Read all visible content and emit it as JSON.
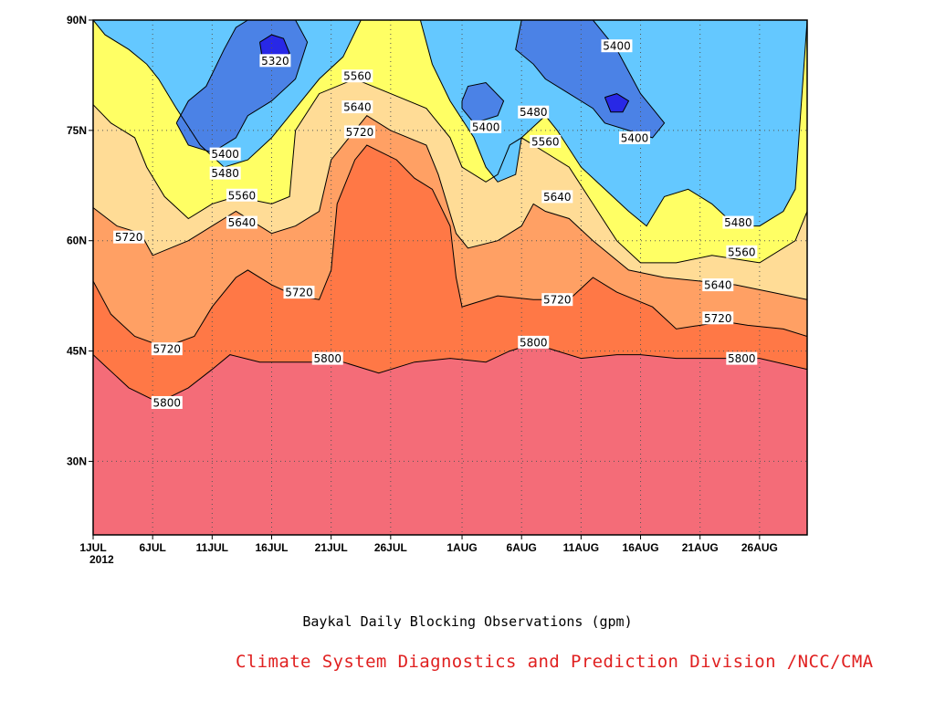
{
  "chart_data": {
    "type": "heatmap",
    "title": "Baykal Daily Blocking Observations (gpm)",
    "credit": "Climate System Diagnostics and Prediction Division /NCC/CMA",
    "xlabel": "",
    "ylabel": "",
    "x_range": [
      "2012-07-01",
      "2012-08-30"
    ],
    "y_range": [
      20,
      90
    ],
    "x_ticks": [
      {
        "day": 0,
        "label": "1JUL"
      },
      {
        "day": 5,
        "label": "6JUL"
      },
      {
        "day": 10,
        "label": "11JUL"
      },
      {
        "day": 15,
        "label": "16JUL"
      },
      {
        "day": 20,
        "label": "21JUL"
      },
      {
        "day": 25,
        "label": "26JUL"
      },
      {
        "day": 31,
        "label": "1AUG"
      },
      {
        "day": 36,
        "label": "6AUG"
      },
      {
        "day": 41,
        "label": "11AUG"
      },
      {
        "day": 46,
        "label": "16AUG"
      },
      {
        "day": 51,
        "label": "21AUG"
      },
      {
        "day": 56,
        "label": "26AUG"
      }
    ],
    "year_label": "2012",
    "y_ticks": [
      {
        "lat": 30,
        "label": "30N"
      },
      {
        "lat": 45,
        "label": "45N"
      },
      {
        "lat": 60,
        "label": "60N"
      },
      {
        "lat": 75,
        "label": "75N"
      },
      {
        "lat": 90,
        "label": "90N"
      }
    ],
    "grid": true,
    "levels": [
      5320,
      5400,
      5480,
      5560,
      5640,
      5720,
      5800
    ],
    "fill_colors": {
      "5320": "#2828e6",
      "5400": "#4b82e6",
      "5480": "#64c8ff",
      "5560": "#ffff64",
      "5640": "#ffdc96",
      "5720": "#ffa064",
      "5800": "#ff7846",
      "above": "#f46c78"
    },
    "contours": [
      {
        "level": 5800,
        "points": [
          [
            0,
            44.5
          ],
          [
            1,
            43
          ],
          [
            3,
            40
          ],
          [
            5.5,
            38
          ],
          [
            8,
            40
          ],
          [
            10,
            42.5
          ],
          [
            11.5,
            44.5
          ],
          [
            14,
            43.5
          ],
          [
            18,
            43.5
          ],
          [
            21,
            43.5
          ],
          [
            24,
            42
          ],
          [
            27,
            43.5
          ],
          [
            30,
            44
          ],
          [
            33,
            43.5
          ],
          [
            35,
            45
          ],
          [
            37,
            46
          ],
          [
            39,
            45
          ],
          [
            41,
            44
          ],
          [
            44,
            44.5
          ],
          [
            46,
            44.5
          ],
          [
            49,
            44
          ],
          [
            53,
            44
          ],
          [
            56,
            44
          ],
          [
            60,
            42.5
          ]
        ]
      },
      {
        "level": 5720,
        "points": [
          [
            0,
            54.5
          ],
          [
            1.5,
            50
          ],
          [
            3.5,
            47
          ],
          [
            6,
            45.5
          ],
          [
            8.5,
            47
          ],
          [
            10,
            51
          ],
          [
            12,
            55
          ],
          [
            13,
            56
          ],
          [
            15,
            54
          ],
          [
            17,
            52.5
          ],
          [
            19,
            52
          ],
          [
            20,
            56
          ],
          [
            20.5,
            65
          ],
          [
            22,
            71
          ],
          [
            23,
            73
          ],
          [
            25.5,
            71
          ],
          [
            27,
            68.5
          ],
          [
            28.5,
            67
          ],
          [
            30,
            62
          ],
          [
            30.5,
            55
          ],
          [
            31,
            51
          ],
          [
            34,
            52.5
          ],
          [
            37,
            52
          ],
          [
            40,
            52
          ],
          [
            42,
            55
          ],
          [
            44,
            53
          ],
          [
            47,
            51
          ],
          [
            49,
            48
          ],
          [
            53,
            49
          ],
          [
            55,
            48.5
          ],
          [
            58,
            48
          ],
          [
            60,
            47
          ]
        ]
      },
      {
        "level": 5640,
        "points": [
          [
            0,
            64.5
          ],
          [
            2,
            62
          ],
          [
            4,
            61
          ],
          [
            5,
            58
          ],
          [
            8,
            60
          ],
          [
            10,
            62
          ],
          [
            12,
            64
          ],
          [
            15,
            61
          ],
          [
            17,
            62
          ],
          [
            19,
            64
          ],
          [
            20,
            71
          ],
          [
            23,
            77
          ],
          [
            25,
            75
          ],
          [
            28,
            73
          ],
          [
            29,
            69
          ],
          [
            30.5,
            61
          ],
          [
            31.5,
            59
          ],
          [
            34,
            60
          ],
          [
            36,
            62
          ],
          [
            37,
            65
          ],
          [
            38,
            64
          ],
          [
            40,
            63
          ],
          [
            42,
            60
          ],
          [
            45,
            56
          ],
          [
            48,
            55
          ],
          [
            51,
            54.5
          ],
          [
            54,
            54
          ],
          [
            57,
            53
          ],
          [
            60,
            52
          ]
        ]
      },
      {
        "level": 5560,
        "points": [
          [
            0,
            78.5
          ],
          [
            1.5,
            76
          ],
          [
            3.5,
            74
          ],
          [
            4.5,
            70
          ],
          [
            6,
            66
          ],
          [
            8,
            63
          ],
          [
            10,
            65
          ],
          [
            12,
            66
          ],
          [
            15,
            65
          ],
          [
            16.5,
            66
          ],
          [
            17,
            75
          ],
          [
            19,
            80
          ],
          [
            22,
            82
          ],
          [
            25,
            80
          ],
          [
            28,
            78
          ],
          [
            30,
            74
          ],
          [
            31,
            70
          ],
          [
            33,
            68
          ],
          [
            34,
            69
          ],
          [
            35,
            73
          ],
          [
            36,
            74
          ],
          [
            38,
            72
          ],
          [
            40,
            70
          ],
          [
            42,
            65
          ],
          [
            44,
            60
          ],
          [
            46,
            57
          ],
          [
            49,
            57
          ],
          [
            52,
            58
          ],
          [
            56,
            57
          ],
          [
            59,
            60
          ],
          [
            60,
            64
          ]
        ]
      },
      {
        "level": 5480,
        "points": [
          [
            0,
            90
          ],
          [
            1,
            88
          ],
          [
            3,
            86
          ],
          [
            4.5,
            84
          ],
          [
            5.5,
            82
          ],
          [
            7,
            78
          ],
          [
            9,
            73
          ],
          [
            11,
            70
          ],
          [
            13,
            71
          ],
          [
            15,
            74
          ],
          [
            17,
            78
          ],
          [
            19,
            82
          ],
          [
            21,
            85
          ],
          [
            22.5,
            90
          ]
        ]
      },
      {
        "level": 5480,
        "points": [
          [
            27.5,
            90
          ],
          [
            28.5,
            84
          ],
          [
            30,
            79
          ],
          [
            32,
            74
          ],
          [
            33,
            70
          ],
          [
            34,
            68
          ],
          [
            35.5,
            69
          ],
          [
            36,
            74
          ],
          [
            38,
            77
          ],
          [
            39,
            75
          ],
          [
            41,
            70
          ],
          [
            43,
            67
          ],
          [
            45,
            64
          ],
          [
            46.5,
            62
          ],
          [
            48,
            66
          ],
          [
            50,
            67
          ],
          [
            52,
            65
          ],
          [
            54,
            62
          ],
          [
            56,
            62
          ],
          [
            58,
            64
          ],
          [
            59,
            67
          ],
          [
            60,
            90
          ]
        ]
      },
      {
        "level": 5400,
        "points": [
          [
            7,
            76
          ],
          [
            8,
            79
          ],
          [
            9.5,
            81
          ],
          [
            11,
            86
          ],
          [
            12,
            89
          ],
          [
            13,
            90
          ],
          [
            17,
            90
          ],
          [
            18,
            87
          ],
          [
            17,
            82
          ],
          [
            15,
            79
          ],
          [
            13,
            77
          ],
          [
            12,
            74
          ],
          [
            10,
            72
          ],
          [
            8,
            73
          ],
          [
            7,
            76
          ]
        ]
      },
      {
        "level": 5400,
        "points": [
          [
            36,
            90
          ],
          [
            35.5,
            86
          ],
          [
            37,
            84
          ],
          [
            38,
            82
          ],
          [
            40,
            80
          ],
          [
            42,
            78
          ],
          [
            43,
            76
          ],
          [
            45,
            75
          ],
          [
            47,
            74
          ],
          [
            48,
            76
          ],
          [
            47,
            78
          ],
          [
            46,
            80
          ],
          [
            45,
            83
          ],
          [
            44,
            86
          ],
          [
            43,
            88
          ],
          [
            42,
            90
          ]
        ]
      },
      {
        "level": 5400,
        "points": [
          [
            31,
            79
          ],
          [
            31.5,
            81
          ],
          [
            33,
            81.5
          ],
          [
            34.5,
            79
          ],
          [
            34,
            77
          ],
          [
            32,
            76
          ],
          [
            31,
            78
          ],
          [
            31,
            79
          ]
        ]
      },
      {
        "level": 5320,
        "points": [
          [
            14,
            87
          ],
          [
            15,
            88
          ],
          [
            16,
            87.5
          ],
          [
            16.5,
            85.5
          ],
          [
            15.5,
            84
          ],
          [
            14.2,
            85
          ],
          [
            14,
            87
          ]
        ]
      },
      {
        "level": 5320,
        "points": [
          [
            43,
            79.5
          ],
          [
            44,
            80
          ],
          [
            45,
            79
          ],
          [
            44.5,
            77.5
          ],
          [
            43.5,
            77.5
          ],
          [
            43,
            79.5
          ]
        ]
      }
    ],
    "contour_labels": [
      {
        "text": "5320",
        "day": 15.3,
        "lat": 84.5
      },
      {
        "text": "5400",
        "day": 11.1,
        "lat": 71.8
      },
      {
        "text": "5480",
        "day": 11.1,
        "lat": 69.2
      },
      {
        "text": "5560",
        "day": 12.5,
        "lat": 66.2
      },
      {
        "text": "5640",
        "day": 12.5,
        "lat": 62.5
      },
      {
        "text": "5720",
        "day": 3.0,
        "lat": 60.5
      },
      {
        "text": "5720",
        "day": 17.3,
        "lat": 53.0
      },
      {
        "text": "5720",
        "day": 6.2,
        "lat": 45.3
      },
      {
        "text": "5800",
        "day": 6.2,
        "lat": 38.0
      },
      {
        "text": "5800",
        "day": 19.7,
        "lat": 44.0
      },
      {
        "text": "5560",
        "day": 22.2,
        "lat": 82.4
      },
      {
        "text": "5640",
        "day": 22.2,
        "lat": 78.2
      },
      {
        "text": "5720",
        "day": 22.4,
        "lat": 74.8
      },
      {
        "text": "5400",
        "day": 33.0,
        "lat": 75.5
      },
      {
        "text": "5480",
        "day": 37.0,
        "lat": 77.5
      },
      {
        "text": "5560",
        "day": 38.0,
        "lat": 73.5
      },
      {
        "text": "5640",
        "day": 39.0,
        "lat": 66.0
      },
      {
        "text": "5720",
        "day": 39.0,
        "lat": 52.0
      },
      {
        "text": "5800",
        "day": 37.0,
        "lat": 46.2
      },
      {
        "text": "5400",
        "day": 44.0,
        "lat": 86.5
      },
      {
        "text": "5400",
        "day": 45.5,
        "lat": 74.0
      },
      {
        "text": "5480",
        "day": 54.2,
        "lat": 62.5
      },
      {
        "text": "5560",
        "day": 54.5,
        "lat": 58.5
      },
      {
        "text": "5640",
        "day": 52.5,
        "lat": 54.0
      },
      {
        "text": "5720",
        "day": 52.5,
        "lat": 49.5
      },
      {
        "text": "5800",
        "day": 54.5,
        "lat": 44.0
      }
    ]
  }
}
